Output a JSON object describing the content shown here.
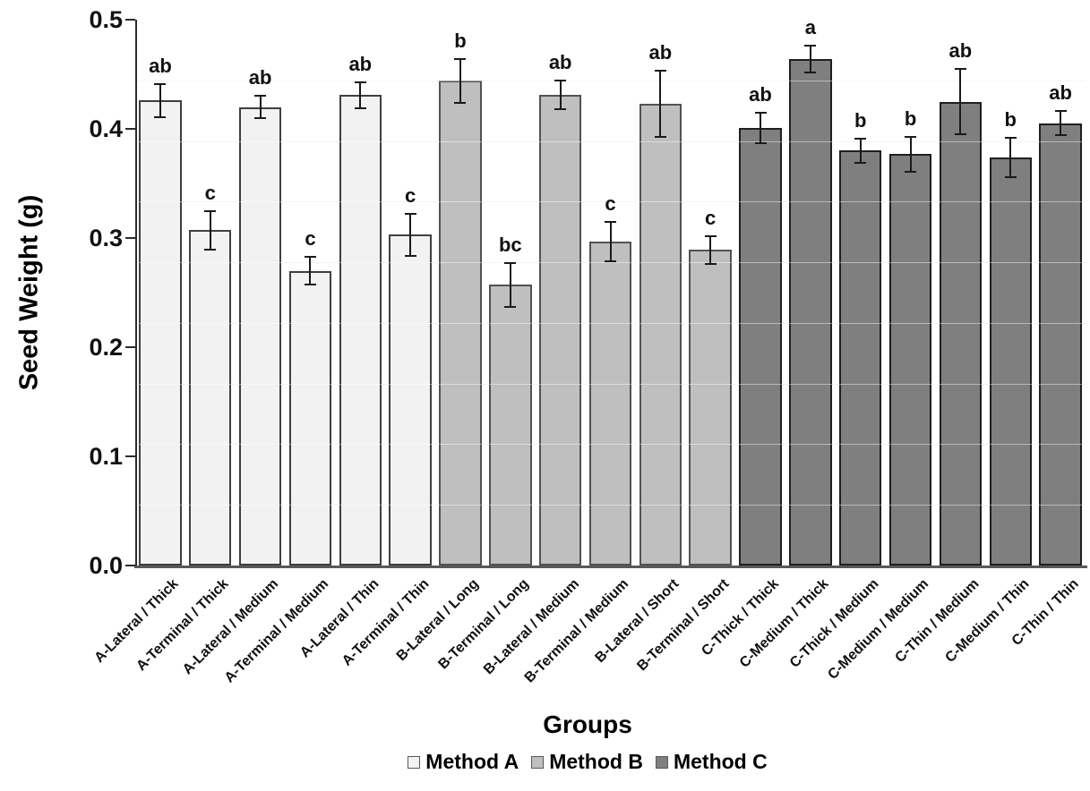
{
  "chart_data": {
    "type": "bar",
    "title": "",
    "ylabel": "Seed Weight (g)",
    "xlabel": "Groups",
    "ylim": [
      0,
      0.5
    ],
    "yticks": [
      0.0,
      0.1,
      0.2,
      0.3,
      0.4,
      0.5
    ],
    "ytick_labels": [
      "0.0",
      "0.1",
      "0.2",
      "0.3",
      "0.4",
      "0.5"
    ],
    "grid": {
      "visible": true,
      "minor_divisions": 9
    },
    "legend_position": "bottom-center",
    "series": [
      {
        "name": "Method A",
        "fill": "#f2f2f2",
        "border": "#3f3f3f"
      },
      {
        "name": "Method B",
        "fill": "#bfbfbf",
        "border": "#525252"
      },
      {
        "name": "Method C",
        "fill": "#7f7f7f",
        "border": "#1f1f1f"
      }
    ],
    "bars": [
      {
        "category": "A-Lateral / Thick",
        "series": "Method A",
        "value": 0.426,
        "error": 0.015,
        "letter": "ab"
      },
      {
        "category": "A-Terminal / Thick",
        "series": "Method A",
        "value": 0.307,
        "error": 0.018,
        "letter": "c"
      },
      {
        "category": "A-Lateral / Medium",
        "series": "Method A",
        "value": 0.42,
        "error": 0.01,
        "letter": "ab"
      },
      {
        "category": "A-Terminal / Medium",
        "series": "Method A",
        "value": 0.27,
        "error": 0.013,
        "letter": "c"
      },
      {
        "category": "A-Lateral / Thin",
        "series": "Method A",
        "value": 0.431,
        "error": 0.012,
        "letter": "ab"
      },
      {
        "category": "A-Terminal / Thin",
        "series": "Method A",
        "value": 0.303,
        "error": 0.019,
        "letter": "c"
      },
      {
        "category": "B-Lateral / Long",
        "series": "Method B",
        "value": 0.444,
        "error": 0.02,
        "letter": "b"
      },
      {
        "category": "B-Terminal / Long",
        "series": "Method B",
        "value": 0.257,
        "error": 0.02,
        "letter": "bc"
      },
      {
        "category": "B-Lateral / Medium",
        "series": "Method B",
        "value": 0.431,
        "error": 0.013,
        "letter": "ab"
      },
      {
        "category": "B-Terminal / Medium",
        "series": "Method B",
        "value": 0.297,
        "error": 0.018,
        "letter": "c"
      },
      {
        "category": "B-Lateral / Short",
        "series": "Method B",
        "value": 0.423,
        "error": 0.03,
        "letter": "ab"
      },
      {
        "category": "B-Terminal / Short",
        "series": "Method B",
        "value": 0.289,
        "error": 0.013,
        "letter": "c"
      },
      {
        "category": "C-Thick / Thick",
        "series": "Method C",
        "value": 0.401,
        "error": 0.014,
        "letter": "ab"
      },
      {
        "category": "C-Medium / Thick",
        "series": "Method C",
        "value": 0.464,
        "error": 0.012,
        "letter": "a"
      },
      {
        "category": "C-Thick / Medium",
        "series": "Method C",
        "value": 0.38,
        "error": 0.011,
        "letter": "b"
      },
      {
        "category": "C-Medium / Medium",
        "series": "Method C",
        "value": 0.377,
        "error": 0.016,
        "letter": "b"
      },
      {
        "category": "C-Thin / Medium",
        "series": "Method C",
        "value": 0.425,
        "error": 0.03,
        "letter": "ab"
      },
      {
        "category": "C-Medium / Thin",
        "series": "Method C",
        "value": 0.374,
        "error": 0.018,
        "letter": "b"
      },
      {
        "category": "C-Thin / Thin",
        "series": "Method C",
        "value": 0.405,
        "error": 0.011,
        "letter": "ab"
      }
    ],
    "style": {
      "y_axis_color": "#2b2b2b",
      "x_axis_color": "#595959",
      "error_bar_color": "#1a1a1a"
    }
  }
}
